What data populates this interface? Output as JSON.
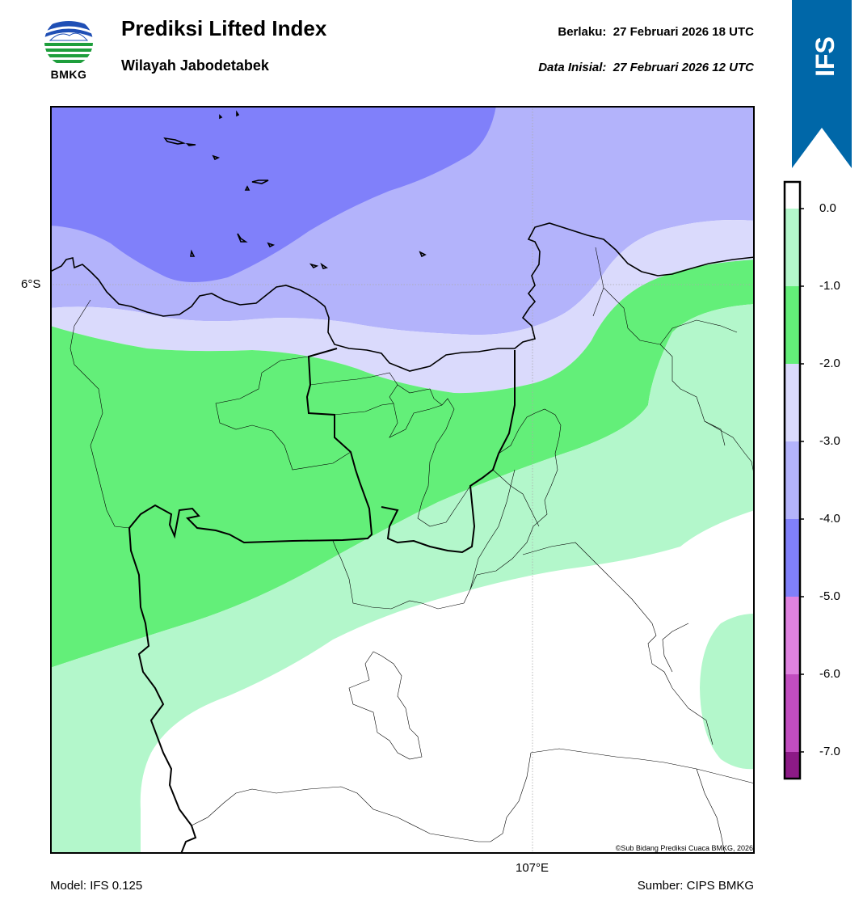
{
  "header": {
    "logo_text": "BMKG",
    "title": "Prediksi Lifted Index",
    "subtitle": "Wilayah Jabodetabek",
    "valid_label": "Berlaku:",
    "valid_value": "27 Februari 2026 18 UTC",
    "init_label": "Data Inisial:",
    "init_value": "27 Februari 2026 12 UTC"
  },
  "ribbon": {
    "text": "IFS",
    "color": "#0067A8"
  },
  "map": {
    "lat_label": "6°S",
    "lon_label": "107°E",
    "copyright": "©Sub Bidang Prediksi Cuaca BMKG, 2026"
  },
  "footer": {
    "model": "Model: IFS 0.125",
    "source": "Sumber: CIPS BMKG"
  },
  "colorbar": {
    "labels": [
      "0.0",
      "-1.0",
      "-2.0",
      "-3.0",
      "-4.0",
      "-5.0",
      "-6.0",
      "-7.0"
    ],
    "bins": [
      {
        "range": "0.0 to -1.0",
        "color": "#B3F7CB"
      },
      {
        "range": "-1.0 to -2.0",
        "color": "#63EF79"
      },
      {
        "range": "-2.0 to -3.0",
        "color": "#DADAFC"
      },
      {
        "range": "-3.0 to -4.0",
        "color": "#B3B3FB"
      },
      {
        "range": "-4.0 to -5.0",
        "color": "#8080FA"
      },
      {
        "range": "-5.0 to -6.0",
        "color": "#E082E0"
      },
      {
        "range": "-6.0 to -7.0",
        "color": "#C24DC0"
      },
      {
        "range": "below -7.0",
        "color": "#8C1A86"
      }
    ]
  }
}
